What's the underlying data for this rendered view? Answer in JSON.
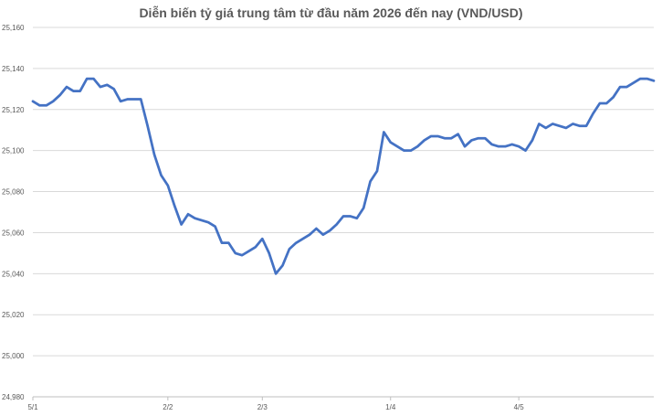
{
  "chart_data": {
    "type": "line",
    "title": "Diễn biến tỷ giá trung tâm từ đầu năm 2026 đến nay (VND/USD)",
    "xlabel": "",
    "ylabel": "",
    "ylim": [
      24980,
      25160
    ],
    "y_ticks": [
      24980,
      25000,
      25020,
      25040,
      25060,
      25080,
      25100,
      25120,
      25140,
      25160
    ],
    "y_tick_labels": [
      "24,980",
      "25,000",
      "25,020",
      "25,040",
      "25,060",
      "25,080",
      "25,100",
      "25,120",
      "25,140",
      "25,160"
    ],
    "x_tick_labels": [
      {
        "label": "5/1",
        "index": 0
      },
      {
        "label": "2/2",
        "index": 20
      },
      {
        "label": "2/3",
        "index": 34
      },
      {
        "label": "1/4",
        "index": 53
      },
      {
        "label": "4/5",
        "index": 72
      }
    ],
    "grid": true,
    "line_color": "#4472c4",
    "series": [
      {
        "values": [
          25124,
          25122,
          25122,
          25124,
          25127,
          25131,
          25129,
          25129,
          25135,
          25135,
          25131,
          25132,
          25130,
          25124,
          25125,
          25125,
          25125,
          25112,
          25098,
          25088,
          25083,
          25073,
          25064,
          25069,
          25067,
          25066,
          25065,
          25063,
          25055,
          25055,
          25050,
          25049,
          25051,
          25053,
          25057,
          25050,
          25040,
          25044,
          25052,
          25055,
          25057,
          25059,
          25062,
          25059,
          25061,
          25064,
          25068,
          25068,
          25067,
          25072,
          25085,
          25090,
          25109,
          25104,
          25102,
          25100,
          25100,
          25102,
          25105,
          25107,
          25107,
          25106,
          25106,
          25108,
          25102,
          25105,
          25106,
          25106,
          25103,
          25102,
          25102,
          25103,
          25102,
          25100,
          25105,
          25113,
          25111,
          25113,
          25112,
          25111,
          25113,
          25112,
          25112,
          25118,
          25123,
          25123,
          25126,
          25131,
          25131,
          25133,
          25135,
          25135,
          25134
        ]
      }
    ]
  }
}
